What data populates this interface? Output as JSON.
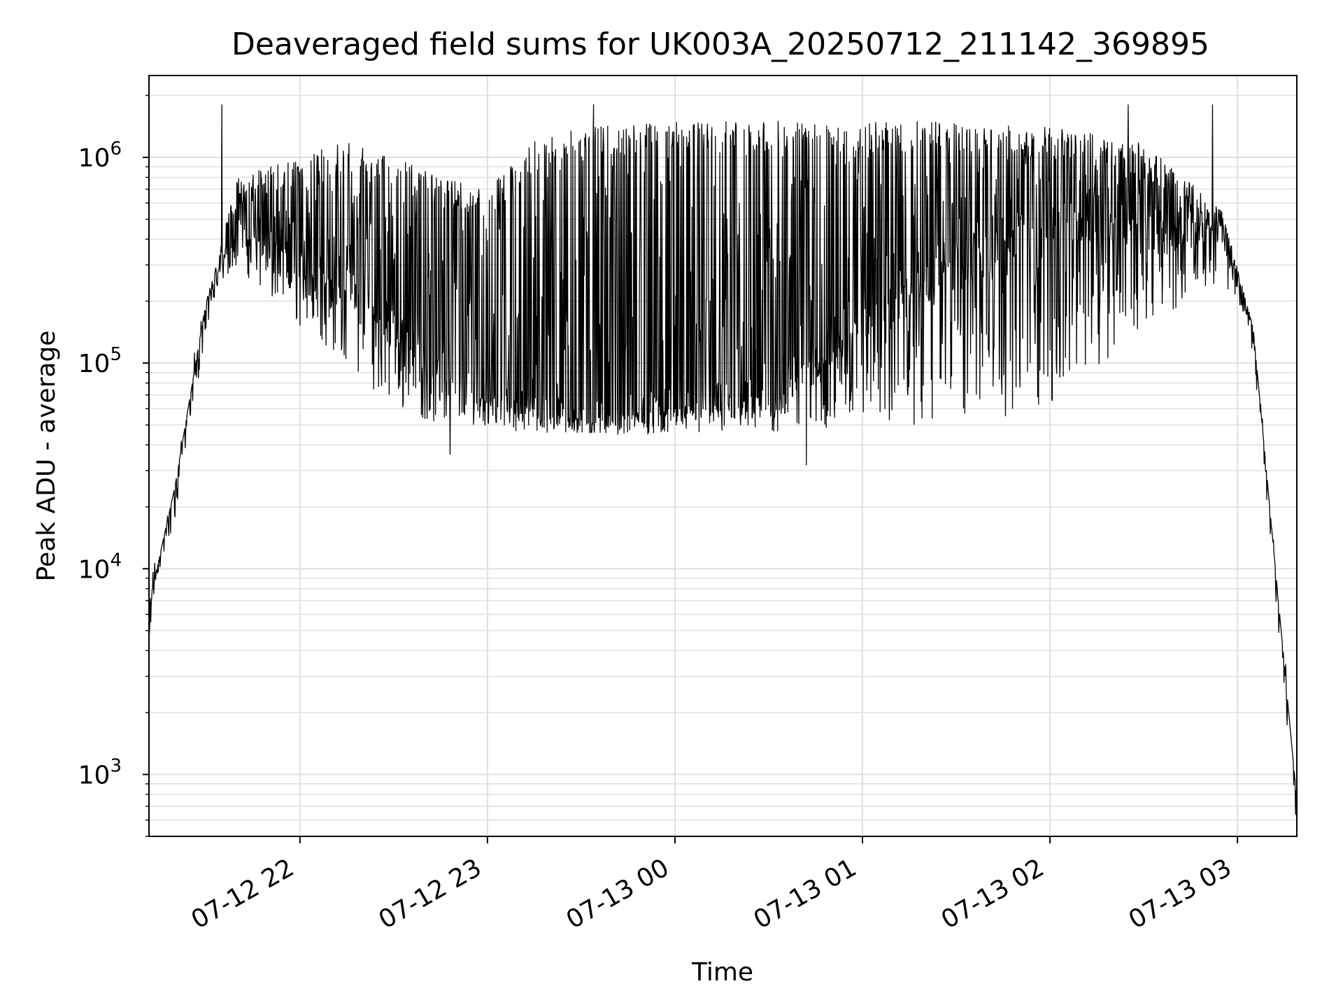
{
  "chart_data": {
    "type": "line",
    "title": "Deaveraged field sums for UK003A_20250712_211142_369895",
    "xlabel": "Time",
    "ylabel": "Peak ADU - average",
    "yscale": "log",
    "ylim": [
      500,
      2500000
    ],
    "xlim": [
      "2025-07-12 21:11:42",
      "2025-07-13 03:19:00"
    ],
    "grid": true,
    "line_color": "#000000",
    "grid_color": "#e0e0e0",
    "x_ticks": [
      {
        "value": "2025-07-12 22:00",
        "label": "07-12 22"
      },
      {
        "value": "2025-07-12 23:00",
        "label": "07-12 23"
      },
      {
        "value": "2025-07-13 00:00",
        "label": "07-13 00"
      },
      {
        "value": "2025-07-13 01:00",
        "label": "07-13 01"
      },
      {
        "value": "2025-07-13 02:00",
        "label": "07-13 02"
      },
      {
        "value": "2025-07-13 03:00",
        "label": "07-13 03"
      }
    ],
    "y_ticks": [
      {
        "value": 1000,
        "base": "10",
        "exp": "3"
      },
      {
        "value": 10000,
        "base": "10",
        "exp": "4"
      },
      {
        "value": 100000,
        "base": "10",
        "exp": "5"
      },
      {
        "value": 1000000,
        "base": "10",
        "exp": "6"
      }
    ],
    "envelope": {
      "description_times": [
        "2025-07-12 21:11",
        "2025-07-12 21:20",
        "2025-07-12 21:30",
        "2025-07-12 21:40",
        "2025-07-12 21:50",
        "2025-07-12 22:00",
        "2025-07-12 22:15",
        "2025-07-12 22:30",
        "2025-07-12 22:45",
        "2025-07-12 23:00",
        "2025-07-12 23:15",
        "2025-07-12 23:30",
        "2025-07-13 00:00",
        "2025-07-13 00:30",
        "2025-07-13 01:00",
        "2025-07-13 01:30",
        "2025-07-13 02:00",
        "2025-07-13 02:30",
        "2025-07-13 02:55",
        "2025-07-13 03:05",
        "2025-07-13 03:19"
      ],
      "baseline": [
        6000,
        25000,
        200000,
        480000,
        350000,
        300000,
        250000,
        150000,
        90000,
        70000,
        60000,
        55000,
        60000,
        70000,
        150000,
        300000,
        500000,
        450000,
        450000,
        150000,
        750
      ],
      "low": [
        6000,
        25000,
        200000,
        300000,
        200000,
        150000,
        100000,
        60000,
        50000,
        50000,
        45000,
        45000,
        45000,
        45000,
        50000,
        50000,
        60000,
        150000,
        250000,
        150000,
        750
      ],
      "high": [
        6000,
        25000,
        200000,
        800000,
        900000,
        1000000,
        1200000,
        1000000,
        800000,
        700000,
        1200000,
        1400000,
        1500000,
        1500000,
        1500000,
        1500000,
        1400000,
        1200000,
        550000,
        150000,
        750
      ]
    },
    "notable_spikes": [
      {
        "time": "2025-07-12 21:35",
        "value": 1800000
      },
      {
        "time": "2025-07-12 23:34",
        "value": 1800000
      },
      {
        "time": "2025-07-13 02:25",
        "value": 1800000
      },
      {
        "time": "2025-07-13 02:52",
        "value": 1800000
      },
      {
        "time": "2025-07-13 00:42",
        "value": 32000
      },
      {
        "time": "2025-07-12 22:48",
        "value": 36000
      }
    ]
  }
}
